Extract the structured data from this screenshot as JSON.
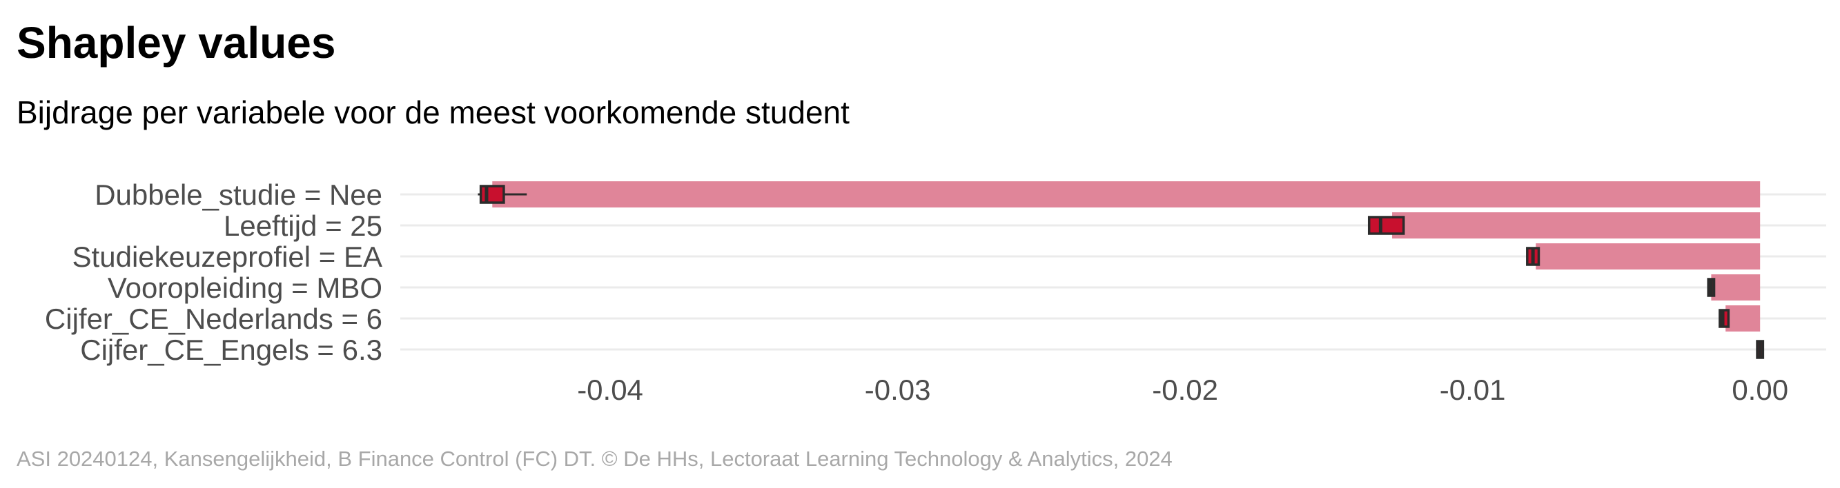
{
  "title": "Shapley values",
  "subtitle": "Bijdrage per variabele voor de meest voorkomende student",
  "caption": "ASI 20240124, Kansengelijkheid, B Finance Control (FC) DT. © De HHs, Lectoraat Learning Technology & Analytics, 2024",
  "colors": {
    "bar": "#e08599",
    "box_fill": "#c8102e",
    "box_stroke": "#2b2b2b",
    "grid": "#ebebeb",
    "axis_text": "#4d4d4d"
  },
  "chart_data": {
    "type": "bar",
    "orientation": "horizontal",
    "categories": [
      "Dubbele_studie = Nee",
      "Leeftijd = 25",
      "Studiekeuzeprofiel = EA",
      "Vooropleiding = MBO",
      "Cijfer_CE_Nederlands = 6",
      "Cijfer_CE_Engels = 6.3"
    ],
    "values": [
      -0.0441,
      -0.0128,
      -0.0078,
      -0.0017,
      -0.0012,
      0.0
    ],
    "boxplots": [
      {
        "min": -0.0446,
        "q1": -0.0445,
        "median": -0.0443,
        "q3": -0.0437,
        "max": -0.0429
      },
      {
        "min": -0.0136,
        "q1": -0.0136,
        "median": -0.0132,
        "q3": -0.0124,
        "max": -0.0124
      },
      {
        "min": -0.0081,
        "q1": -0.0081,
        "median": -0.0079,
        "q3": -0.0077,
        "max": -0.0077
      },
      {
        "min": -0.0018,
        "q1": -0.0018,
        "median": -0.0017,
        "q3": -0.0016,
        "max": -0.0016
      },
      {
        "min": -0.0014,
        "q1": -0.0014,
        "median": -0.0013,
        "q3": -0.0011,
        "max": -0.0011
      },
      {
        "min": -0.0001,
        "q1": -0.0001,
        "median": 0.0,
        "q3": 0.0001,
        "max": 0.0001
      }
    ],
    "x_ticks": [
      -0.04,
      -0.03,
      -0.02,
      -0.01,
      0.0
    ],
    "x_tick_labels": [
      "-0.04",
      "-0.03",
      "-0.02",
      "-0.01",
      "0.00"
    ],
    "xlim": [
      -0.0473,
      0.0023
    ],
    "xlabel": "",
    "ylabel": "",
    "grid": true,
    "legend": "none"
  }
}
